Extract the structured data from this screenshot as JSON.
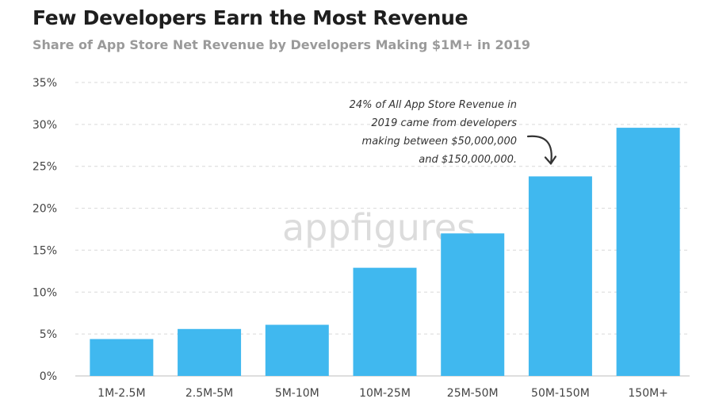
{
  "header": {
    "title": "Few Developers Earn the Most Revenue",
    "subtitle": "Share of App Store Net Revenue by Developers Making $1M+ in 2019"
  },
  "watermark": "appfigures",
  "colors": {
    "bar": "#40b8ef",
    "grid": "#d9d9d9",
    "axis": "#bdbdbd"
  },
  "chart_data": {
    "type": "bar",
    "title": "Few Developers Earn the Most Revenue",
    "subtitle": "Share of App Store Net Revenue by Developers Making $1M+ in 2019",
    "categories": [
      "1M-2.5M",
      "2.5M-5M",
      "5M-10M",
      "10M-25M",
      "25M-50M",
      "50M-150M",
      "150M+"
    ],
    "values": [
      4.4,
      5.6,
      6.1,
      12.9,
      17.0,
      23.8,
      29.6
    ],
    "ylim": [
      0,
      35
    ],
    "yticks": [
      "0%",
      "5%",
      "10%",
      "15%",
      "20%",
      "25%",
      "30%",
      "35%"
    ],
    "xlabel": "",
    "ylabel": "",
    "grid": true,
    "annotation": {
      "lines": [
        "24% of All App Store Revenue in",
        "2019 came from developers",
        "making between $50,000,000",
        "and $150,000,000."
      ],
      "target_category": "50M-150M"
    }
  }
}
